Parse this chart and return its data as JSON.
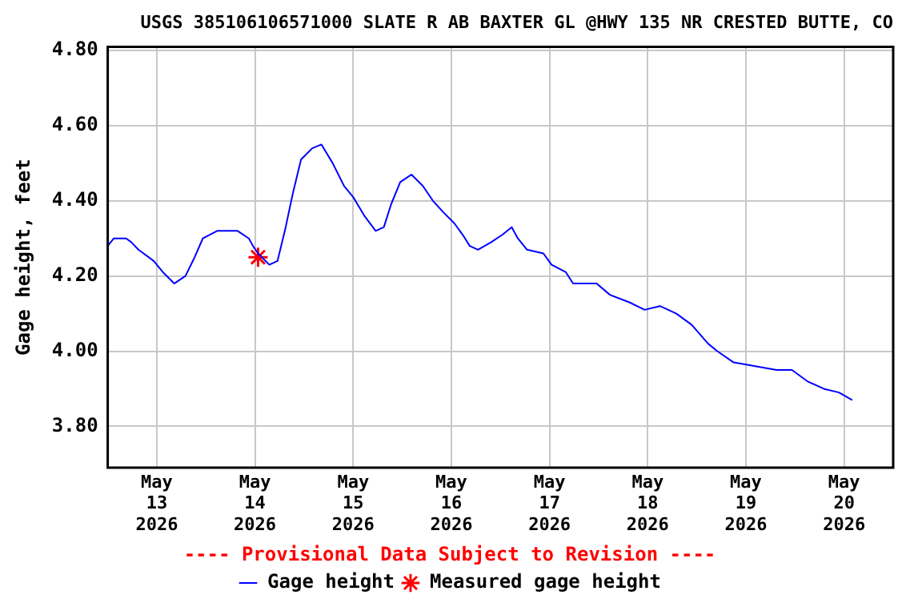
{
  "chart_data": {
    "type": "line",
    "title": "USGS 385106106571000 SLATE R AB BAXTER GL @HWY 135 NR CRESTED BUTTE, CO",
    "ylabel": "Gage height, feet",
    "annotations": [
      "---- Provisional Data Subject to Revision ----"
    ],
    "xlim": [
      "2026-05-12T12:00",
      "2026-05-20T12:00"
    ],
    "xticks": [
      {
        "value": "2026-05-13",
        "label": "May\n13\n2026"
      },
      {
        "value": "2026-05-14",
        "label": "May\n14\n2026"
      },
      {
        "value": "2026-05-15",
        "label": "May\n15\n2026"
      },
      {
        "value": "2026-05-16",
        "label": "May\n16\n2026"
      },
      {
        "value": "2026-05-17",
        "label": "May\n17\n2026"
      },
      {
        "value": "2026-05-18",
        "label": "May\n18\n2026"
      },
      {
        "value": "2026-05-19",
        "label": "May\n19\n2026"
      },
      {
        "value": "2026-05-20",
        "label": "May\n20\n2026"
      }
    ],
    "ylim": [
      3.69,
      4.81
    ],
    "yticks": [
      {
        "value": 3.8,
        "label": "3.80"
      },
      {
        "value": 4.0,
        "label": "4.00"
      },
      {
        "value": 4.2,
        "label": "4.20"
      },
      {
        "value": 4.4,
        "label": "4.40"
      },
      {
        "value": 4.6,
        "label": "4.60"
      },
      {
        "value": 4.8,
        "label": "4.80"
      }
    ],
    "grid": true,
    "legend": "bottom",
    "series": [
      {
        "name": "Gage height",
        "type": "line",
        "color": "#0000ff",
        "marker": "none",
        "x": [
          "2026-05-12T12:00",
          "2026-05-12T13:30",
          "2026-05-12T16:30",
          "2026-05-12T17:45",
          "2026-05-12T19:30",
          "2026-05-12T23:15",
          "2026-05-13T01:30",
          "2026-05-13T04:15",
          "2026-05-13T07:00",
          "2026-05-13T09:15",
          "2026-05-13T11:15",
          "2026-05-13T14:45",
          "2026-05-13T19:45",
          "2026-05-13T22:30",
          "2026-05-13T23:30",
          "2026-05-14T00:45",
          "2026-05-14T03:30",
          "2026-05-14T05:30",
          "2026-05-14T07:30",
          "2026-05-14T09:15",
          "2026-05-14T11:15",
          "2026-05-14T14:00",
          "2026-05-14T16:15",
          "2026-05-14T19:00",
          "2026-05-14T21:45",
          "2026-05-15T00:00",
          "2026-05-15T02:45",
          "2026-05-15T05:30",
          "2026-05-15T07:30",
          "2026-05-15T09:15",
          "2026-05-15T11:30",
          "2026-05-15T14:15",
          "2026-05-15T17:00",
          "2026-05-15T19:30",
          "2026-05-15T22:00",
          "2026-05-16T00:45",
          "2026-05-16T02:45",
          "2026-05-16T04:30",
          "2026-05-16T06:30",
          "2026-05-16T09:45",
          "2026-05-16T12:30",
          "2026-05-16T14:45",
          "2026-05-16T16:15",
          "2026-05-16T18:30",
          "2026-05-16T22:30",
          "2026-05-17T00:30",
          "2026-05-17T04:00",
          "2026-05-17T05:45",
          "2026-05-17T11:30",
          "2026-05-17T14:45",
          "2026-05-17T19:30",
          "2026-05-17T23:15",
          "2026-05-18T03:00",
          "2026-05-18T07:00",
          "2026-05-18T10:45",
          "2026-05-18T14:45",
          "2026-05-18T17:00",
          "2026-05-18T21:00",
          "2026-05-19T02:15",
          "2026-05-19T07:30",
          "2026-05-19T11:15",
          "2026-05-19T15:00",
          "2026-05-19T19:00",
          "2026-05-19T22:45",
          "2026-05-20T02:00"
        ],
        "values": [
          4.28,
          4.3,
          4.3,
          4.29,
          4.27,
          4.24,
          4.21,
          4.18,
          4.2,
          4.25,
          4.3,
          4.32,
          4.32,
          4.3,
          4.28,
          4.26,
          4.23,
          4.24,
          4.33,
          4.42,
          4.51,
          4.54,
          4.55,
          4.5,
          4.44,
          4.41,
          4.36,
          4.32,
          4.33,
          4.39,
          4.45,
          4.47,
          4.44,
          4.4,
          4.37,
          4.34,
          4.31,
          4.28,
          4.27,
          4.29,
          4.31,
          4.33,
          4.3,
          4.27,
          4.26,
          4.23,
          4.21,
          4.18,
          4.18,
          4.15,
          4.13,
          4.11,
          4.12,
          4.1,
          4.07,
          4.02,
          4.0,
          3.97,
          3.96,
          3.95,
          3.95,
          3.92,
          3.9,
          3.89,
          3.87
        ]
      },
      {
        "name": "Measured gage height",
        "type": "scatter",
        "color": "#ff0000",
        "marker": "cross",
        "x": [
          "2026-05-14T00:45"
        ],
        "values": [
          4.25
        ]
      }
    ]
  }
}
